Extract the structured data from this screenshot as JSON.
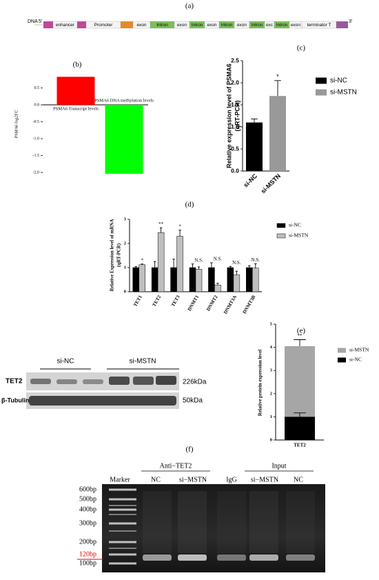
{
  "figure": {
    "panel_labels": [
      "(a)",
      "(b)",
      "(c)",
      "(d)",
      "(e)",
      "(f)"
    ],
    "gene_diagram": {
      "strand": "DNA",
      "five_prime": "5'",
      "three_prime": "3'",
      "segments": [
        "enhancer",
        "Promoter",
        "exon",
        "Intron",
        "exon",
        "Intron",
        "exon",
        "Intron",
        "exon",
        "Intron",
        "exc",
        "Intron",
        "exon",
        "terminator T"
      ]
    },
    "western_blot": {
      "groups": [
        "si-NC",
        "si-MSTN"
      ],
      "rows": [
        "TET2",
        "β-Tubulin"
      ],
      "sizes": [
        "226kDa",
        "50kDa"
      ]
    },
    "gel": {
      "groups": [
        "Anti−TET2",
        "Input"
      ],
      "lanes": [
        "Marker",
        "NC",
        "si−MSTN",
        "IgG",
        "si−MSTN",
        "NC"
      ],
      "ladder": [
        "600bp",
        "500bp",
        "400bp",
        "300bp",
        "200bp",
        "120bp",
        "100bp"
      ]
    }
  },
  "chart_data": [
    {
      "type": "bar",
      "ylabel": "PSMA6 log2FC",
      "categories": [
        "PSMA6 Transcript levels",
        "PSMA6 DNA methylation levels"
      ],
      "values": [
        0.83,
        -2.04
      ],
      "colors": [
        "#ff0000",
        "#00ff00"
      ],
      "ylim": [
        -2.15,
        0.95
      ],
      "yticks": [
        0.5,
        {
          "value": 0,
          "label": "0.0"
        },
        -0.5,
        {
          "value": -1,
          "label": "-1.0"
        },
        -1.5,
        {
          "value": -2,
          "label": "-2.0"
        }
      ]
    },
    {
      "type": "bar",
      "ylabel": [
        "Relative expression level of PSMA6",
        "(qRT-PCR)"
      ],
      "categories": [
        "si-NC",
        "si-MSTN"
      ],
      "values": [
        1.1,
        1.7
      ],
      "errors": [
        0.08,
        0.35
      ],
      "colors": [
        "#000000",
        "#999999"
      ],
      "annotations": [
        null,
        "*"
      ],
      "legend": true,
      "ylim": [
        0,
        2.5
      ],
      "yticks": [
        {
          "value": 0,
          "label": "0.0"
        },
        0.5,
        {
          "value": 1,
          "label": "1.0"
        },
        1.5,
        {
          "value": 2,
          "label": "2.0"
        },
        2.5
      ]
    },
    {
      "type": "bar",
      "ylabel": [
        "Relative Expression level of mRNA",
        "(qRT-PCR)"
      ],
      "categories": [
        "TET1",
        "TET2",
        "TET3",
        "DNMT1",
        "DNMT2",
        "DNMT3A",
        "DNMT3B"
      ],
      "series": [
        {
          "name": "si-NC",
          "color": "#000000",
          "values": [
            1,
            1,
            1,
            1,
            1,
            1,
            1
          ],
          "errors": [
            0.04,
            0.25,
            0.35,
            0.15,
            0.2,
            0.05,
            0.08
          ]
        },
        {
          "name": "si-MSTN",
          "color": "#bfbfbf",
          "values": [
            1.12,
            2.45,
            2.3,
            0.93,
            0.28,
            0.7,
            0.98
          ],
          "errors": [
            0.03,
            0.2,
            0.25,
            0.1,
            0.07,
            0.15,
            0.18
          ]
        }
      ],
      "annotations": [
        "*",
        "**",
        "*",
        "N.S.",
        "N.S.",
        "N.S.",
        "N.S."
      ],
      "ylim": [
        0,
        3
      ],
      "yticks": [
        0,
        1,
        2,
        3
      ]
    },
    {
      "type": "bar",
      "ylabel": "Relative protein expression level",
      "overlay": true,
      "categories": [
        "TET2"
      ],
      "series": [
        {
          "name": "si-MSTN",
          "color": "#a6a6a6",
          "values": [
            4.05
          ],
          "errors": [
            0.28
          ]
        },
        {
          "name": "si-NC",
          "color": "#000000",
          "values": [
            1.0
          ],
          "errors": [
            0.17
          ]
        }
      ],
      "annotations": [
        "**"
      ],
      "ylim": [
        0,
        5
      ],
      "yticks": [
        0,
        1,
        2,
        3,
        4,
        5
      ]
    }
  ]
}
